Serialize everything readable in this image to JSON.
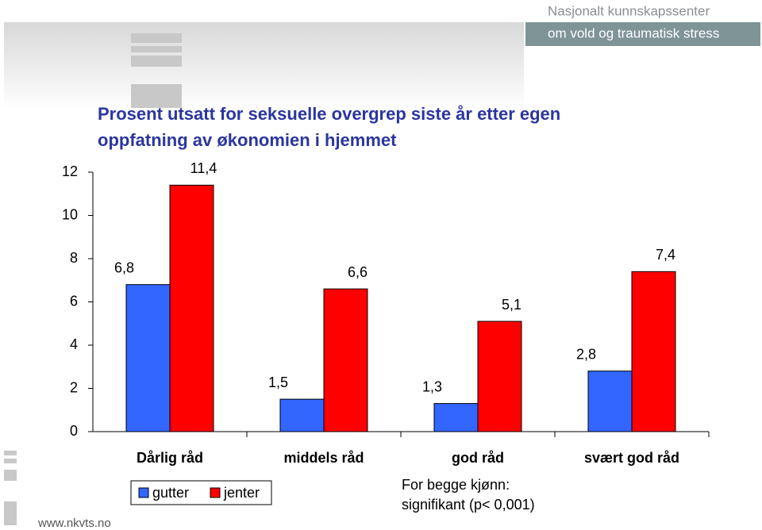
{
  "branding": {
    "org_line1": "Nasjonalt kunnskapssenter",
    "org_line2": "om vold og traumatisk stress",
    "url": "www.nkvts.no"
  },
  "chart_data": {
    "type": "bar",
    "title": [
      "Prosent utsatt for seksuelle overgrep siste år etter egen",
      "oppfatning av økonomien i hjemmet"
    ],
    "categories": [
      "Dårlig råd",
      "middels råd",
      "god råd",
      "svært god råd"
    ],
    "series": [
      {
        "name": "gutter",
        "color": "#3366ff",
        "values": [
          6.8,
          1.5,
          1.3,
          2.8
        ],
        "value_labels": [
          "6,8",
          "1,5",
          "1,3",
          "2,8"
        ]
      },
      {
        "name": "jenter",
        "color": "#ff0000",
        "values": [
          11.4,
          6.6,
          5.1,
          7.4
        ],
        "value_labels": [
          "11,4",
          "6,6",
          "5,1",
          "7,4"
        ]
      }
    ],
    "ylim": [
      0,
      12
    ],
    "yticks": [
      0,
      2,
      4,
      6,
      8,
      10,
      12
    ],
    "grid": false,
    "annotation": [
      "For begge kjønn:",
      "signifikant (p< 0,001)"
    ]
  }
}
